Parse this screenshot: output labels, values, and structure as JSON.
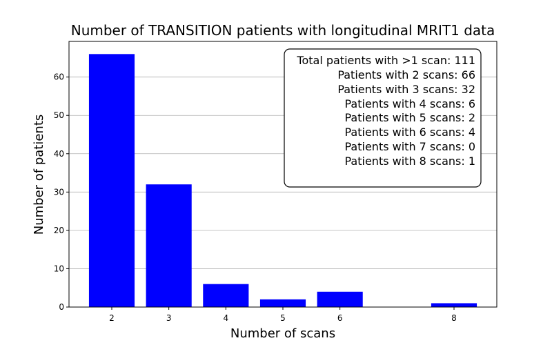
{
  "chart_data": {
    "type": "bar",
    "title": "Number of TRANSITION patients with longitudinal MRIT1 data",
    "xlabel": "Number of scans",
    "ylabel": "Number of patients",
    "x": [
      2,
      3,
      4,
      5,
      6,
      8
    ],
    "values": [
      66,
      32,
      6,
      2,
      4,
      1
    ],
    "xticks": [
      2,
      3,
      4,
      5,
      6,
      8
    ],
    "yticks": [
      0,
      10,
      20,
      30,
      40,
      50,
      60
    ],
    "xlim": [
      1.25,
      8.75
    ],
    "ylim": [
      0,
      69.3
    ],
    "grid": "y",
    "bar_color": "#0000ff",
    "stats_box": {
      "placement": "top-right",
      "lines": [
        "Total patients with >1 scan: 111",
        "Patients with 2 scans: 66",
        "Patients with 3 scans: 32",
        "Patients with 4 scans: 6",
        "Patients with 5 scans: 2",
        "Patients with 6 scans: 4",
        "Patients with 7 scans: 0",
        "Patients with 8 scans: 1"
      ]
    }
  }
}
